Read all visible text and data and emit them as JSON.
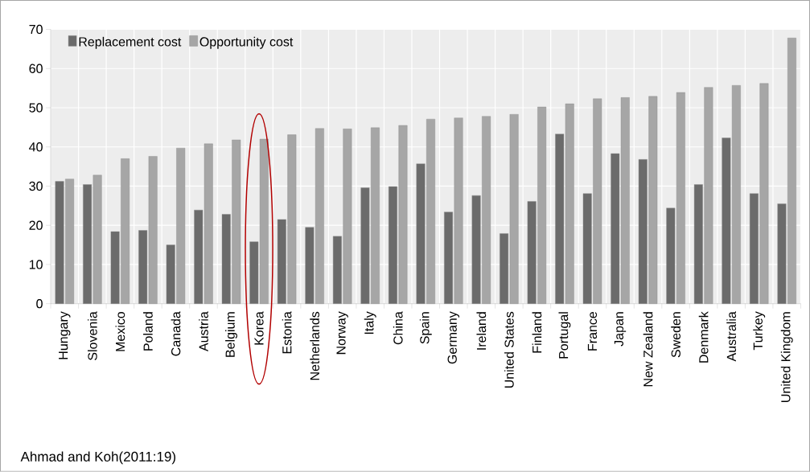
{
  "chart_data": {
    "type": "bar",
    "categories": [
      "Hungary",
      "Slovenia",
      "Mexico",
      "Poland",
      "Canada",
      "Austria",
      "Belgium",
      "Korea",
      "Estonia",
      "Netherlands",
      "Norway",
      "Italy",
      "China",
      "Spain",
      "Germany",
      "Ireland",
      "United States",
      "Finland",
      "Portugal",
      "France",
      "Japan",
      "New Zealand",
      "Sweden",
      "Denmark",
      "Australia",
      "Turkey",
      "United Kingdom"
    ],
    "series": [
      {
        "name": "Replacement cost",
        "color": "#6b6b6b",
        "values": [
          31.2,
          30.4,
          18.4,
          18.7,
          15.0,
          23.9,
          22.8,
          15.8,
          21.5,
          19.5,
          17.2,
          29.6,
          29.9,
          35.7,
          23.4,
          27.6,
          17.9,
          26.1,
          43.3,
          28.1,
          38.3,
          36.8,
          24.4,
          30.4,
          42.3,
          28.1,
          25.5
        ]
      },
      {
        "name": "Opportunity cost",
        "color": "#a6a6a6",
        "values": [
          31.8,
          32.8,
          37.0,
          37.6,
          39.7,
          40.8,
          41.8,
          42.0,
          43.1,
          44.7,
          44.6,
          44.9,
          45.5,
          47.1,
          47.4,
          47.8,
          48.3,
          50.2,
          51.0,
          52.3,
          52.6,
          52.9,
          53.9,
          55.2,
          55.7,
          56.2,
          67.8
        ]
      }
    ],
    "ylim": [
      0,
      70
    ],
    "yticks": [
      0,
      10,
      20,
      30,
      40,
      50,
      60,
      70
    ],
    "grid": true,
    "legend": "top left",
    "annotations": [
      "Ahmad and Koh(2011:19)"
    ]
  }
}
